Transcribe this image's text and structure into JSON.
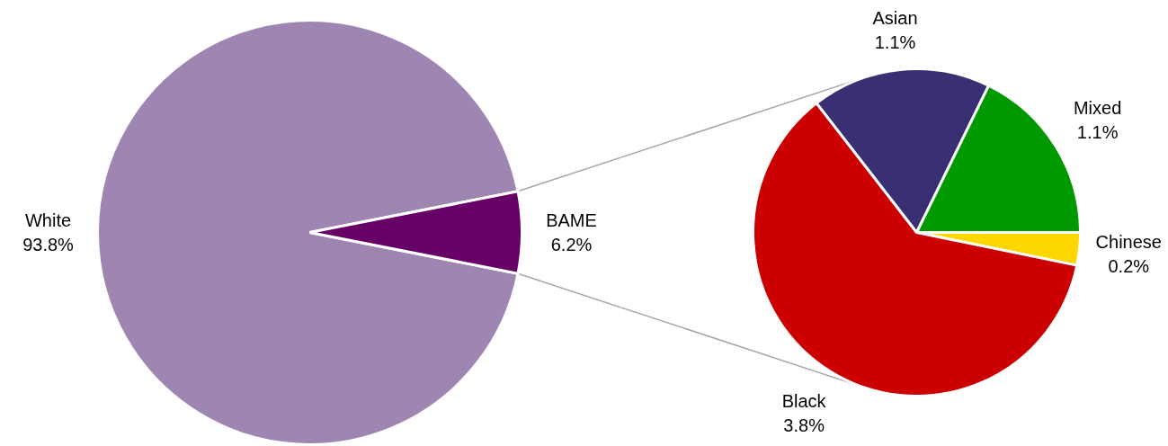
{
  "chart_data": [
    {
      "type": "pie",
      "categories": [
        "White",
        "BAME"
      ],
      "values": [
        93.8,
        6.2
      ],
      "colors": [
        "#9f86b2",
        "#660066"
      ],
      "value_labels": [
        "93.8%",
        "6.2%"
      ]
    },
    {
      "type": "pie",
      "categories": [
        "Chinese",
        "Black",
        "Asian",
        "Mixed"
      ],
      "values": [
        0.2,
        3.8,
        1.1,
        1.1
      ],
      "colors": [
        "#ffd700",
        "#cc0000",
        "#393073",
        "#009900"
      ],
      "value_labels": [
        "0.2%",
        "3.8%",
        "1.1%",
        "1.1%"
      ]
    }
  ]
}
